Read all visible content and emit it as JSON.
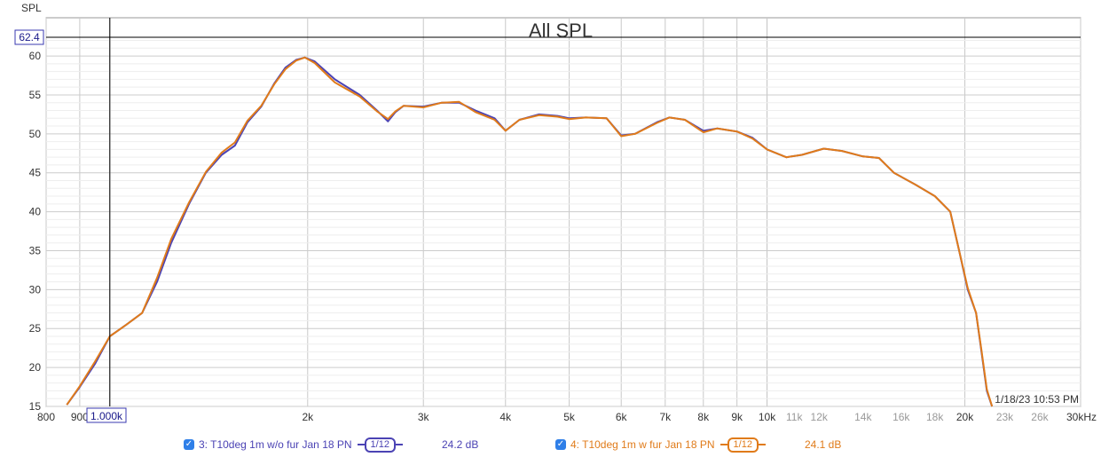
{
  "chart_data": {
    "type": "line",
    "title": "All SPL",
    "ylabel": "SPL",
    "xunit": "kHz",
    "xscale": "log",
    "xlim": [
      800,
      30000
    ],
    "ylim": [
      15,
      62.4
    ],
    "grid": true,
    "cursor": {
      "x_label": "1.000k",
      "y_label": "62.4",
      "x": 1000,
      "y": 62.4
    },
    "timestamp": "1/18/23 10:53 PM",
    "x_ticks": [
      {
        "v": 800,
        "label": "800",
        "major": true
      },
      {
        "v": 900,
        "label": "900",
        "major": true
      },
      {
        "v": 2000,
        "label": "2k",
        "major": true
      },
      {
        "v": 3000,
        "label": "3k",
        "major": true
      },
      {
        "v": 4000,
        "label": "4k",
        "major": true
      },
      {
        "v": 5000,
        "label": "5k",
        "major": true
      },
      {
        "v": 6000,
        "label": "6k",
        "major": true
      },
      {
        "v": 7000,
        "label": "7k",
        "major": true
      },
      {
        "v": 8000,
        "label": "8k",
        "major": true
      },
      {
        "v": 9000,
        "label": "9k",
        "major": true
      },
      {
        "v": 10000,
        "label": "10k",
        "major": true
      },
      {
        "v": 11000,
        "label": "11k",
        "major": false
      },
      {
        "v": 12000,
        "label": "12k",
        "major": false
      },
      {
        "v": 14000,
        "label": "14k",
        "major": false
      },
      {
        "v": 16000,
        "label": "16k",
        "major": false
      },
      {
        "v": 18000,
        "label": "18k",
        "major": false
      },
      {
        "v": 20000,
        "label": "20k",
        "major": true
      },
      {
        "v": 23000,
        "label": "23k",
        "major": false
      },
      {
        "v": 26000,
        "label": "26k",
        "major": false
      },
      {
        "v": 30000,
        "label": "30kHz",
        "major": true
      }
    ],
    "y_ticks": [
      15,
      20,
      25,
      30,
      35,
      40,
      45,
      50,
      55,
      60
    ],
    "series": [
      {
        "name": "3: T10deg 1m w/o fur Jan 18 PN",
        "color": "#4b43b4",
        "smoothing": "1/12",
        "level": "24.2 dB",
        "points": [
          [
            860,
            15.2
          ],
          [
            900,
            17.5
          ],
          [
            950,
            20.5
          ],
          [
            1000,
            24
          ],
          [
            1060,
            25.5
          ],
          [
            1120,
            27
          ],
          [
            1180,
            31
          ],
          [
            1240,
            36
          ],
          [
            1320,
            41
          ],
          [
            1400,
            45
          ],
          [
            1480,
            47.3
          ],
          [
            1550,
            48.5
          ],
          [
            1620,
            51.5
          ],
          [
            1700,
            53.5
          ],
          [
            1780,
            56.5
          ],
          [
            1850,
            58.5
          ],
          [
            1920,
            59.5
          ],
          [
            1980,
            59.8
          ],
          [
            2050,
            59.3
          ],
          [
            2200,
            57
          ],
          [
            2400,
            55
          ],
          [
            2550,
            53
          ],
          [
            2650,
            51.6
          ],
          [
            2720,
            52.8
          ],
          [
            2800,
            53.6
          ],
          [
            3000,
            53.5
          ],
          [
            3200,
            54
          ],
          [
            3400,
            54
          ],
          [
            3600,
            53
          ],
          [
            3850,
            52
          ],
          [
            4000,
            50.4
          ],
          [
            4200,
            51.8
          ],
          [
            4500,
            52.5
          ],
          [
            4800,
            52.3
          ],
          [
            5000,
            52
          ],
          [
            5300,
            52.1
          ],
          [
            5700,
            52
          ],
          [
            6000,
            49.8
          ],
          [
            6300,
            50
          ],
          [
            6800,
            51.5
          ],
          [
            7100,
            52.1
          ],
          [
            7500,
            51.8
          ],
          [
            8000,
            50.4
          ],
          [
            8400,
            50.7
          ],
          [
            9000,
            50.3
          ],
          [
            9500,
            49.5
          ],
          [
            10000,
            48
          ],
          [
            10700,
            47
          ],
          [
            11300,
            47.3
          ],
          [
            12200,
            48.1
          ],
          [
            13000,
            47.8
          ],
          [
            14000,
            47.1
          ],
          [
            14800,
            46.9
          ],
          [
            15600,
            45
          ],
          [
            16800,
            43.5
          ],
          [
            18000,
            42
          ],
          [
            19000,
            40
          ],
          [
            19600,
            35
          ],
          [
            20200,
            30
          ],
          [
            20800,
            27
          ],
          [
            21200,
            22
          ],
          [
            21600,
            17
          ],
          [
            22000,
            15
          ]
        ]
      },
      {
        "name": "4: T10deg 1m w fur Jan 18 PN",
        "color": "#e07b1a",
        "smoothing": "1/12",
        "level": "24.1 dB",
        "points": [
          [
            860,
            15.2
          ],
          [
            900,
            17.6
          ],
          [
            950,
            20.8
          ],
          [
            1000,
            24
          ],
          [
            1060,
            25.5
          ],
          [
            1120,
            27
          ],
          [
            1180,
            31.5
          ],
          [
            1240,
            36.5
          ],
          [
            1320,
            41.2
          ],
          [
            1400,
            45.1
          ],
          [
            1480,
            47.6
          ],
          [
            1550,
            48.9
          ],
          [
            1620,
            51.7
          ],
          [
            1700,
            53.6
          ],
          [
            1780,
            56.4
          ],
          [
            1850,
            58.3
          ],
          [
            1920,
            59.4
          ],
          [
            1980,
            59.8
          ],
          [
            2050,
            59.1
          ],
          [
            2200,
            56.6
          ],
          [
            2400,
            54.8
          ],
          [
            2550,
            52.9
          ],
          [
            2650,
            51.9
          ],
          [
            2720,
            52.9
          ],
          [
            2800,
            53.6
          ],
          [
            3000,
            53.4
          ],
          [
            3200,
            54
          ],
          [
            3400,
            54.1
          ],
          [
            3600,
            52.8
          ],
          [
            3850,
            51.8
          ],
          [
            4000,
            50.4
          ],
          [
            4200,
            51.8
          ],
          [
            4500,
            52.4
          ],
          [
            4800,
            52.2
          ],
          [
            5000,
            51.9
          ],
          [
            5300,
            52.1
          ],
          [
            5700,
            52
          ],
          [
            6000,
            49.7
          ],
          [
            6300,
            50
          ],
          [
            6800,
            51.4
          ],
          [
            7100,
            52.1
          ],
          [
            7500,
            51.8
          ],
          [
            8000,
            50.2
          ],
          [
            8400,
            50.7
          ],
          [
            9000,
            50.3
          ],
          [
            9500,
            49.4
          ],
          [
            10000,
            48
          ],
          [
            10700,
            47
          ],
          [
            11300,
            47.3
          ],
          [
            12200,
            48.1
          ],
          [
            13000,
            47.8
          ],
          [
            14000,
            47.1
          ],
          [
            14800,
            46.9
          ],
          [
            15600,
            45
          ],
          [
            16800,
            43.5
          ],
          [
            18000,
            42
          ],
          [
            19000,
            40
          ],
          [
            19600,
            35
          ],
          [
            20200,
            30.2
          ],
          [
            20800,
            27
          ],
          [
            21200,
            22.2
          ],
          [
            21600,
            17.2
          ],
          [
            22000,
            15
          ]
        ]
      }
    ]
  },
  "legend": {
    "check_glyph": "✓",
    "items": [
      {
        "label": "3: T10deg 1m w/o fur Jan 18 PN",
        "smoothing": "1/12",
        "level": "24.2 dB",
        "color": "#4b43b4"
      },
      {
        "label": "4: T10deg 1m w fur Jan 18 PN",
        "smoothing": "1/12",
        "level": "24.1 dB",
        "color": "#e07b1a"
      }
    ]
  }
}
